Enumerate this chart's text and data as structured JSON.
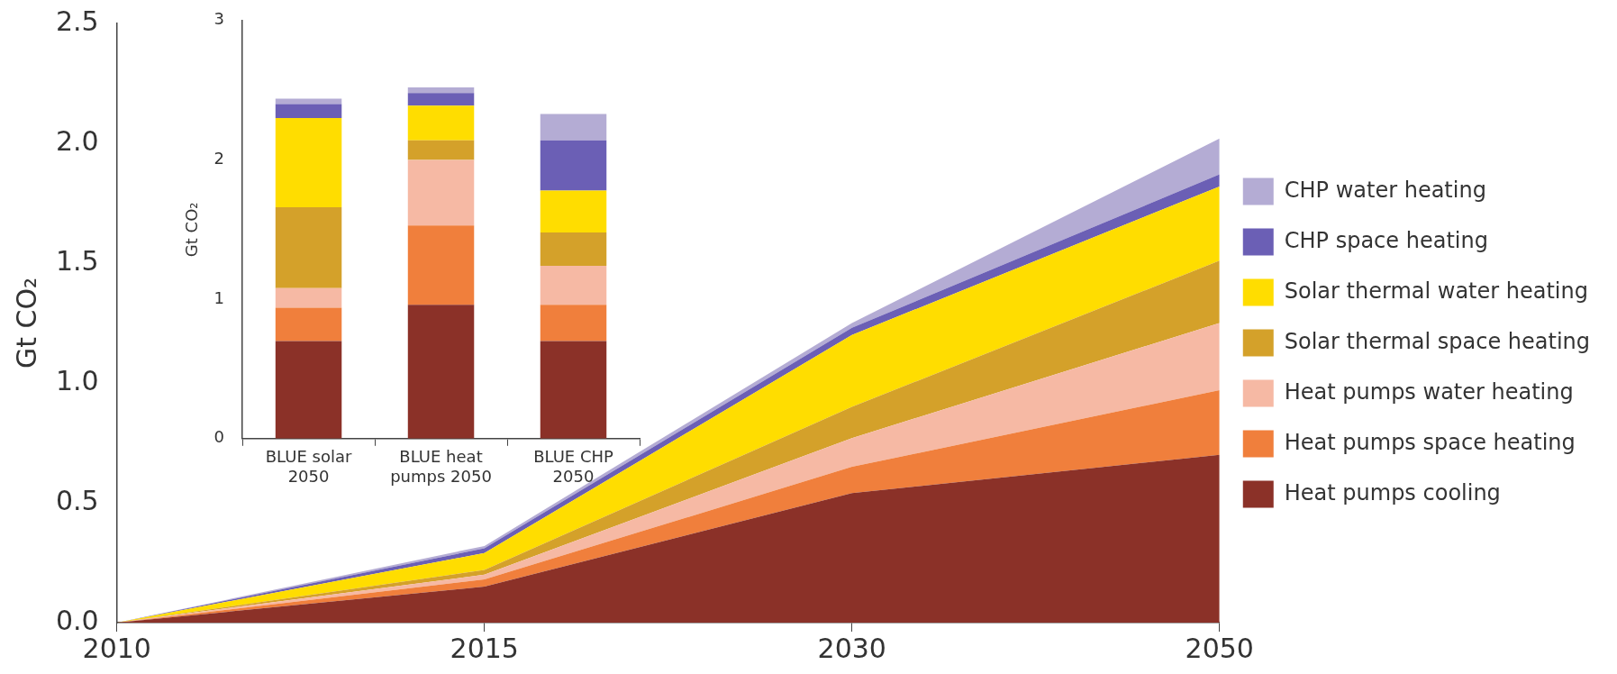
{
  "chart_data": [
    {
      "type": "area",
      "stacked": true,
      "categories": [
        "2010",
        "2015",
        "2030",
        "2050"
      ],
      "ylabel": "Gt CO₂",
      "ylim": [
        0,
        2.5
      ],
      "yticks": [
        {
          "value": 0,
          "label": "0.0"
        },
        0.5,
        {
          "value": 1,
          "label": "1.0"
        },
        1.5,
        {
          "value": 2,
          "label": "2.0"
        },
        2.5
      ],
      "grid": false,
      "legend": "right",
      "series": [
        {
          "name": "Heat pumps cooling",
          "color": "#8b3128",
          "values": [
            0,
            0.15,
            0.54,
            0.7
          ]
        },
        {
          "name": "Heat pumps space heating",
          "color": "#f07f3c",
          "values": [
            0,
            0.03,
            0.11,
            0.27
          ]
        },
        {
          "name": "Heat pumps water heating",
          "color": "#f6b9a4",
          "values": [
            0,
            0.02,
            0.12,
            0.28
          ]
        },
        {
          "name": "Solar thermal space heating",
          "color": "#d4a12a",
          "values": [
            0,
            0.02,
            0.13,
            0.26
          ]
        },
        {
          "name": "Solar thermal water heating",
          "color": "#ffdd00",
          "values": [
            0,
            0.07,
            0.3,
            0.31
          ]
        },
        {
          "name": "CHP space heating",
          "color": "#6b5fb5",
          "values": [
            0,
            0.02,
            0.03,
            0.05
          ]
        },
        {
          "name": "CHP water heating",
          "color": "#b4acd4",
          "values": [
            0,
            0.01,
            0.02,
            0.15
          ]
        }
      ]
    },
    {
      "type": "bar",
      "stacked": true,
      "categories": [
        "BLUE solar 2050",
        "BLUE heat pumps 2050",
        "BLUE CHP 2050"
      ],
      "ylabel": "Gt CO₂",
      "ylim": [
        0,
        3
      ],
      "yticks": [
        0,
        1,
        2,
        3
      ],
      "grid": false,
      "series": [
        {
          "color": "#8b3128",
          "values": [
            0.7,
            0.96,
            0.7
          ]
        },
        {
          "color": "#f07f3c",
          "values": [
            0.24,
            0.57,
            0.26
          ]
        },
        {
          "color": "#f6b9a4",
          "values": [
            0.14,
            0.47,
            0.28
          ]
        },
        {
          "color": "#d4a12a",
          "values": [
            0.58,
            0.14,
            0.24
          ]
        },
        {
          "color": "#ffdd00",
          "values": [
            0.64,
            0.25,
            0.3
          ]
        },
        {
          "color": "#6b5fb5",
          "values": [
            0.1,
            0.09,
            0.36
          ]
        },
        {
          "color": "#b4acd4",
          "values": [
            0.04,
            0.04,
            0.19
          ]
        }
      ]
    }
  ]
}
